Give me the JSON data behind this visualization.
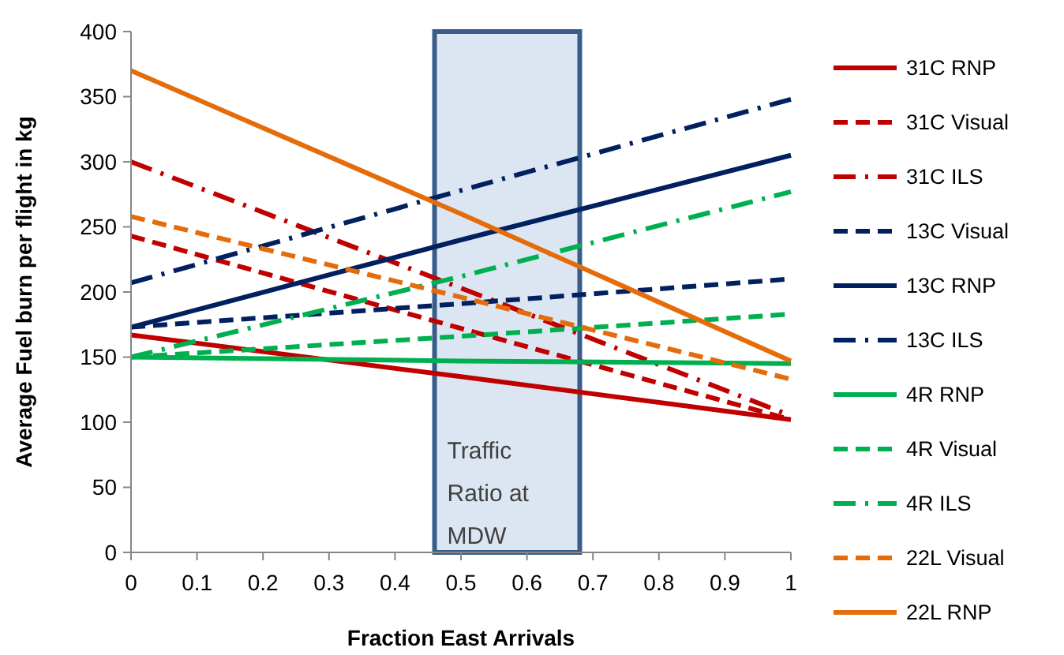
{
  "chart_data": {
    "type": "line",
    "xlabel": "Fraction East Arrivals",
    "ylabel": "Average Fuel burn per flight in kg",
    "xlim": [
      0,
      1
    ],
    "ylim": [
      0,
      400
    ],
    "xticks": [
      0,
      0.1,
      0.2,
      0.3,
      0.4,
      0.5,
      0.6,
      0.7,
      0.8,
      0.9,
      1
    ],
    "yticks": [
      0,
      50,
      100,
      150,
      200,
      250,
      300,
      350,
      400
    ],
    "grid": false,
    "legend": "right",
    "x": [
      0,
      0.5,
      1
    ],
    "series": [
      {
        "name": "31C RNP",
        "color": "#c00000",
        "line_style": "solid",
        "values": [
          167,
          135,
          102
        ]
      },
      {
        "name": "31C Visual",
        "color": "#c00000",
        "line_style": "dashed",
        "values": [
          243,
          172,
          102
        ]
      },
      {
        "name": "31C ILS",
        "color": "#c00000",
        "line_style": "dashdot",
        "values": [
          300,
          203,
          105
        ]
      },
      {
        "name": "13C Visual",
        "color": "#002060",
        "line_style": "dashed",
        "values": [
          173,
          191,
          210
        ]
      },
      {
        "name": "13C RNP",
        "color": "#002060",
        "line_style": "solid",
        "values": [
          173,
          240,
          305
        ]
      },
      {
        "name": "13C ILS",
        "color": "#002060",
        "line_style": "dashdot",
        "values": [
          207,
          278,
          348
        ]
      },
      {
        "name": "4R RNP",
        "color": "#00b050",
        "line_style": "solid",
        "values": [
          150,
          147,
          145
        ]
      },
      {
        "name": "4R Visual",
        "color": "#00b050",
        "line_style": "dashed",
        "values": [
          150,
          166,
          183
        ]
      },
      {
        "name": "4R ILS",
        "color": "#00b050",
        "line_style": "dashdot",
        "values": [
          150,
          212,
          277
        ]
      },
      {
        "name": "22L Visual",
        "color": "#e46c0a",
        "line_style": "dashed",
        "values": [
          258,
          196,
          133
        ]
      },
      {
        "name": "22L RNP",
        "color": "#e46c0a",
        "line_style": "solid",
        "values": [
          370,
          260,
          147
        ]
      }
    ],
    "bands": [
      {
        "axis": "x",
        "from": 0.46,
        "to": 0.68,
        "label": "Traffic Ratio at MDW",
        "color": "#dce6f2"
      }
    ]
  }
}
